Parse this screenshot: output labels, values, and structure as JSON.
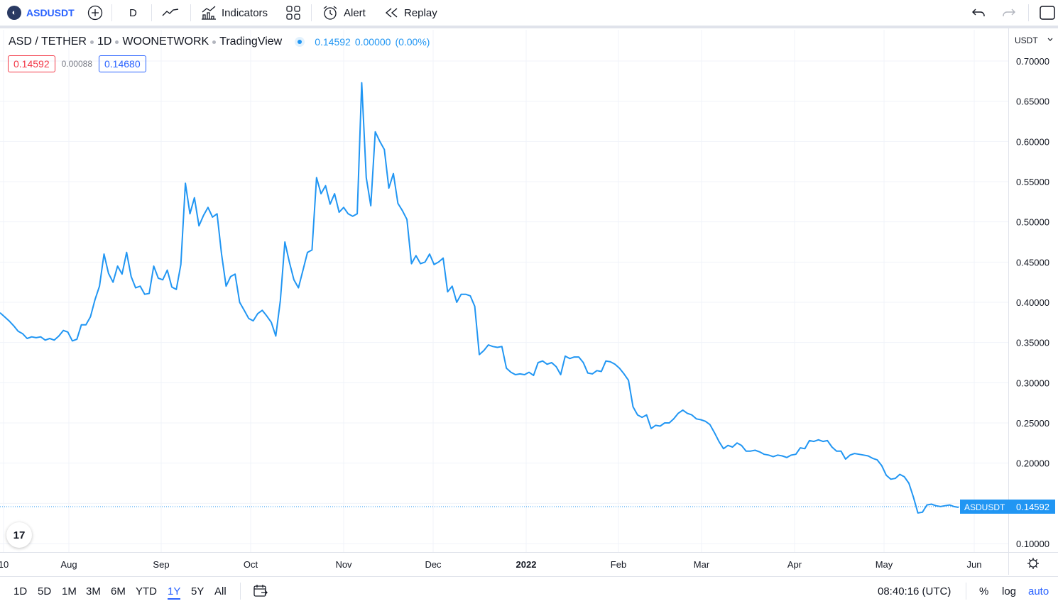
{
  "toolbar": {
    "symbol": "ASDUSDT",
    "interval": "D",
    "indicators_label": "Indicators",
    "alert_label": "Alert",
    "replay_label": "Replay"
  },
  "legend": {
    "pair": "ASD / TETHER",
    "interval": "1D",
    "exchange": "WOONETWORK",
    "source": "TradingView",
    "last": "0.14592",
    "change": "0.00000",
    "change_pct": "(0.00%)",
    "bid": "0.14592",
    "spread": "0.00088",
    "ask": "0.14680"
  },
  "price_axis": {
    "currency": "USDT",
    "ticks": [
      "0.70000",
      "0.65000",
      "0.60000",
      "0.55000",
      "0.50000",
      "0.45000",
      "0.40000",
      "0.35000",
      "0.30000",
      "0.25000",
      "0.20000",
      "0.15000",
      "0.10000"
    ],
    "last_label_symbol": "ASDUSDT",
    "last_label_value": "0.14592"
  },
  "time_axis": {
    "ticks": [
      "10",
      "Aug",
      "Sep",
      "Oct",
      "Nov",
      "Dec",
      "2022",
      "Feb",
      "Mar",
      "Apr",
      "May",
      "Jun"
    ]
  },
  "bottombar": {
    "ranges": [
      "1D",
      "5D",
      "1M",
      "3M",
      "6M",
      "YTD",
      "1Y",
      "5Y",
      "All"
    ],
    "active_range": "1Y",
    "clock": "08:40:16 (UTC)",
    "percent_label": "%",
    "log_label": "log",
    "auto_label": "auto"
  },
  "colors": {
    "line": "#2196f3",
    "accent": "#2962ff",
    "down": "#f23645"
  },
  "chart_data": {
    "type": "line",
    "series": [
      {
        "values": [
          0.387,
          0.382,
          0.377,
          0.371,
          0.364,
          0.361,
          0.355,
          0.357,
          0.356,
          0.357,
          0.353,
          0.355,
          0.353,
          0.358,
          0.365,
          0.363,
          0.352,
          0.354,
          0.372,
          0.372,
          0.382,
          0.403,
          0.42,
          0.46,
          0.436,
          0.425,
          0.445,
          0.435,
          0.462,
          0.432,
          0.418,
          0.42,
          0.41,
          0.411,
          0.445,
          0.43,
          0.428,
          0.44,
          0.419,
          0.416,
          0.447,
          0.548,
          0.51,
          0.53,
          0.495,
          0.508,
          0.518,
          0.506,
          0.51,
          0.46,
          0.42,
          0.432,
          0.435,
          0.4,
          0.39,
          0.38,
          0.377,
          0.386,
          0.39,
          0.383,
          0.375,
          0.358,
          0.402,
          0.475,
          0.45,
          0.428,
          0.418,
          0.44,
          0.462,
          0.465,
          0.555,
          0.535,
          0.545,
          0.522,
          0.535,
          0.512,
          0.518,
          0.51,
          0.507,
          0.51,
          0.673,
          0.555,
          0.52,
          0.612,
          0.6,
          0.59,
          0.542,
          0.56,
          0.523,
          0.514,
          0.503,
          0.448,
          0.458,
          0.448,
          0.45,
          0.46,
          0.447,
          0.45,
          0.455,
          0.413,
          0.42,
          0.4,
          0.41,
          0.41,
          0.408,
          0.395,
          0.335,
          0.34,
          0.347,
          0.345,
          0.344,
          0.345,
          0.318,
          0.313,
          0.31,
          0.311,
          0.31,
          0.313,
          0.309,
          0.325,
          0.327,
          0.323,
          0.325,
          0.32,
          0.31,
          0.333,
          0.33,
          0.332,
          0.332,
          0.325,
          0.312,
          0.311,
          0.315,
          0.314,
          0.327,
          0.326,
          0.323,
          0.318,
          0.311,
          0.303,
          0.27,
          0.26,
          0.257,
          0.26,
          0.243,
          0.247,
          0.246,
          0.25,
          0.25,
          0.255,
          0.262,
          0.266,
          0.262,
          0.26,
          0.255,
          0.254,
          0.252,
          0.248,
          0.238,
          0.227,
          0.218,
          0.222,
          0.22,
          0.225,
          0.222,
          0.215,
          0.215,
          0.216,
          0.214,
          0.211,
          0.21,
          0.208,
          0.21,
          0.209,
          0.207,
          0.21,
          0.211,
          0.219,
          0.218,
          0.228,
          0.227,
          0.229,
          0.227,
          0.228,
          0.22,
          0.215,
          0.215,
          0.205,
          0.21,
          0.212,
          0.211,
          0.21,
          0.209,
          0.206,
          0.204,
          0.197,
          0.185,
          0.18,
          0.181,
          0.186,
          0.183,
          0.175,
          0.158,
          0.138,
          0.139,
          0.148,
          0.149,
          0.147,
          0.146,
          0.147,
          0.148,
          0.146,
          0.145
        ]
      }
    ],
    "ylim": [
      0.09,
      0.73
    ],
    "last_value": 0.14592,
    "grid": true
  }
}
